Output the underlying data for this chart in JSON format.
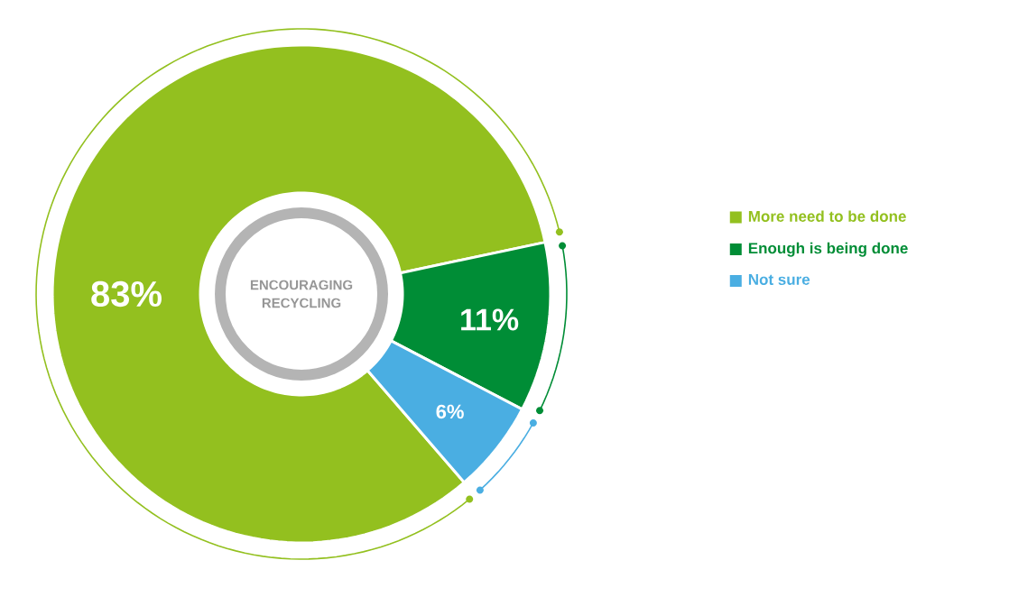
{
  "chart_data": {
    "type": "donut",
    "title": "ENCOURAGING RECYCLING",
    "categories": [
      "More need to be done",
      "Enough is being done",
      "Not sure"
    ],
    "values": [
      83,
      11,
      6
    ],
    "colors": [
      "#93c01f",
      "#008d36",
      "#4aaee2"
    ],
    "value_labels": [
      "83%",
      "11%",
      "6%"
    ],
    "legend": "right"
  }
}
